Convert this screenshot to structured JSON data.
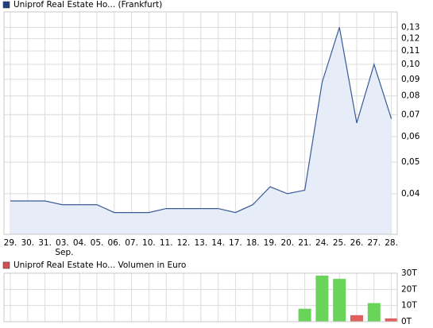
{
  "chart_data": [
    {
      "type": "line",
      "title": "Uniprof Real Estate Ho... (Frankfurt)",
      "legend_color": "#1f3f7f",
      "categories": [
        "29.",
        "30.",
        "31.",
        "03.",
        "04.",
        "05.",
        "06.",
        "07.",
        "10.",
        "11.",
        "12.",
        "13.",
        "14.",
        "17.",
        "18.",
        "19.",
        "20.",
        "21.",
        "24.",
        "25.",
        "26.",
        "27.",
        "28."
      ],
      "period_label": "Sep.",
      "values": [
        0.038,
        0.038,
        0.038,
        0.037,
        0.037,
        0.037,
        0.035,
        0.035,
        0.035,
        0.036,
        0.036,
        0.036,
        0.036,
        0.035,
        0.037,
        0.042,
        0.04,
        0.041,
        0.088,
        0.13,
        0.066,
        0.1,
        0.068
      ],
      "color": "#3a5a96",
      "fill": "#e6ecf8",
      "log_scale": true,
      "grid": true,
      "ylim": [
        0.03,
        0.145
      ],
      "yticks": [
        {
          "value": 0.04,
          "label": "0,04"
        },
        {
          "value": 0.05,
          "label": "0,05"
        },
        {
          "value": 0.06,
          "label": "0,06"
        },
        {
          "value": 0.07,
          "label": "0,07"
        },
        {
          "value": 0.08,
          "label": "0,08"
        },
        {
          "value": 0.09,
          "label": "0,09"
        },
        {
          "value": 0.1,
          "label": "0,10"
        },
        {
          "value": 0.11,
          "label": "0,11"
        },
        {
          "value": 0.12,
          "label": "0,12"
        },
        {
          "value": 0.13,
          "label": "0,13"
        }
      ]
    },
    {
      "type": "bar",
      "title": "Uniprof Real Estate Ho... Volumen in Euro",
      "legend_color": "#d05050",
      "values": [
        0,
        0,
        0,
        0,
        0,
        0,
        0,
        0,
        0,
        0,
        0,
        0,
        0,
        0,
        0,
        0,
        0,
        8000,
        28500,
        26500,
        4000,
        11500,
        2000
      ],
      "bar_colors": [
        "#6ad45a",
        "#6ad45a",
        "#6ad45a",
        "#6ad45a",
        "#6ad45a",
        "#6ad45a",
        "#6ad45a",
        "#6ad45a",
        "#6ad45a",
        "#6ad45a",
        "#6ad45a",
        "#6ad45a",
        "#6ad45a",
        "#6ad45a",
        "#6ad45a",
        "#6ad45a",
        "#6ad45a",
        "#6ad45a",
        "#6ad45a",
        "#6ad45a",
        "#e06060",
        "#6ad45a",
        "#e06060"
      ],
      "grid": true,
      "ylim": [
        0,
        30000
      ],
      "yticks": [
        {
          "value": 0,
          "label": "0T"
        },
        {
          "value": 10000,
          "label": "10T"
        },
        {
          "value": 20000,
          "label": "20T"
        },
        {
          "value": 30000,
          "label": "30T"
        }
      ]
    }
  ]
}
